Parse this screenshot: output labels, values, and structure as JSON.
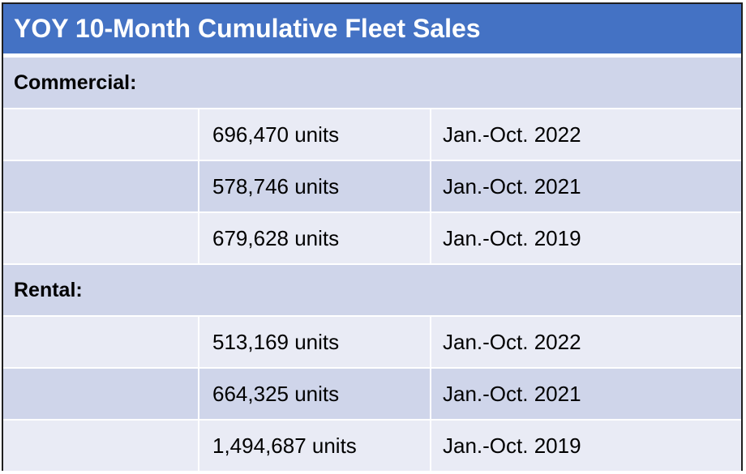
{
  "title": "YOY 10-Month Cumulative Fleet Sales",
  "sections": [
    {
      "label": "Commercial:",
      "rows": [
        {
          "units": "696,470 units",
          "period": "Jan.-Oct. 2022"
        },
        {
          "units": "578,746 units",
          "period": "Jan.-Oct. 2021"
        },
        {
          "units": "679,628 units",
          "period": "Jan.-Oct. 2019"
        }
      ]
    },
    {
      "label": "Rental:",
      "rows": [
        {
          "units": "513,169 units",
          "period": "Jan.-Oct. 2022"
        },
        {
          "units": "664,325 units",
          "period": "Jan.-Oct. 2021"
        },
        {
          "units": "1,494,687 units",
          "period": "Jan.-Oct. 2019"
        }
      ]
    }
  ],
  "colors": {
    "header": "#4472c4",
    "band_dark": "#cfd5ea",
    "band_light": "#e9ebf5"
  }
}
